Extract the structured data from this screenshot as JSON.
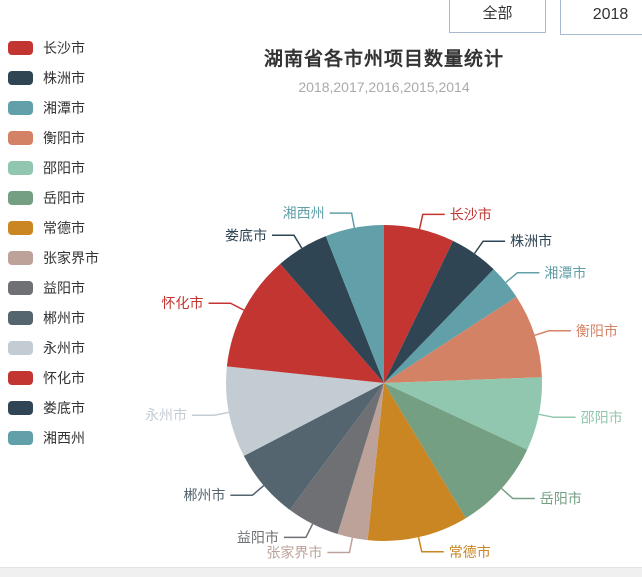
{
  "header": {
    "buttons": [
      {
        "label": "全部"
      },
      {
        "label": "2018"
      }
    ],
    "button_border_color": "#a6b9cf"
  },
  "chart_data": {
    "type": "pie",
    "title": "湖南省各市州项目数量统计",
    "subtitle": "2018,2017,2016,2015,2014",
    "legend_position": "left",
    "label_style": "outside labels with leader lines, label text colored same as slice",
    "start_angle": "12 o'clock, clockwise",
    "values_displayed": false,
    "note": "no numeric values are rendered in the chart; percent_est estimated from slice angles",
    "series": [
      {
        "name": "长沙市",
        "color": "#c23531",
        "percent_est": 7.2
      },
      {
        "name": "株洲市",
        "color": "#2f4554",
        "percent_est": 5.0
      },
      {
        "name": "湘潭市",
        "color": "#61a0a8",
        "percent_est": 3.6
      },
      {
        "name": "衡阳市",
        "color": "#d48265",
        "percent_est": 8.6
      },
      {
        "name": "邵阳市",
        "color": "#91c7ae",
        "percent_est": 7.5
      },
      {
        "name": "岳阳市",
        "color": "#749f83",
        "percent_est": 9.4
      },
      {
        "name": "常德市",
        "color": "#ca8622",
        "percent_est": 10.3
      },
      {
        "name": "张家界市",
        "color": "#bda29a",
        "percent_est": 3.1
      },
      {
        "name": "益阳市",
        "color": "#6e7074",
        "percent_est": 5.4
      },
      {
        "name": "郴州市",
        "color": "#546570",
        "percent_est": 7.2
      },
      {
        "name": "永州市",
        "color": "#c4ccd3",
        "percent_est": 9.3
      },
      {
        "name": "怀化市",
        "color": "#c23531",
        "percent_est": 11.9
      },
      {
        "name": "娄底市",
        "color": "#2f4554",
        "percent_est": 5.4
      },
      {
        "name": "湘西州",
        "color": "#61a0a8",
        "percent_est": 6.0
      }
    ]
  }
}
